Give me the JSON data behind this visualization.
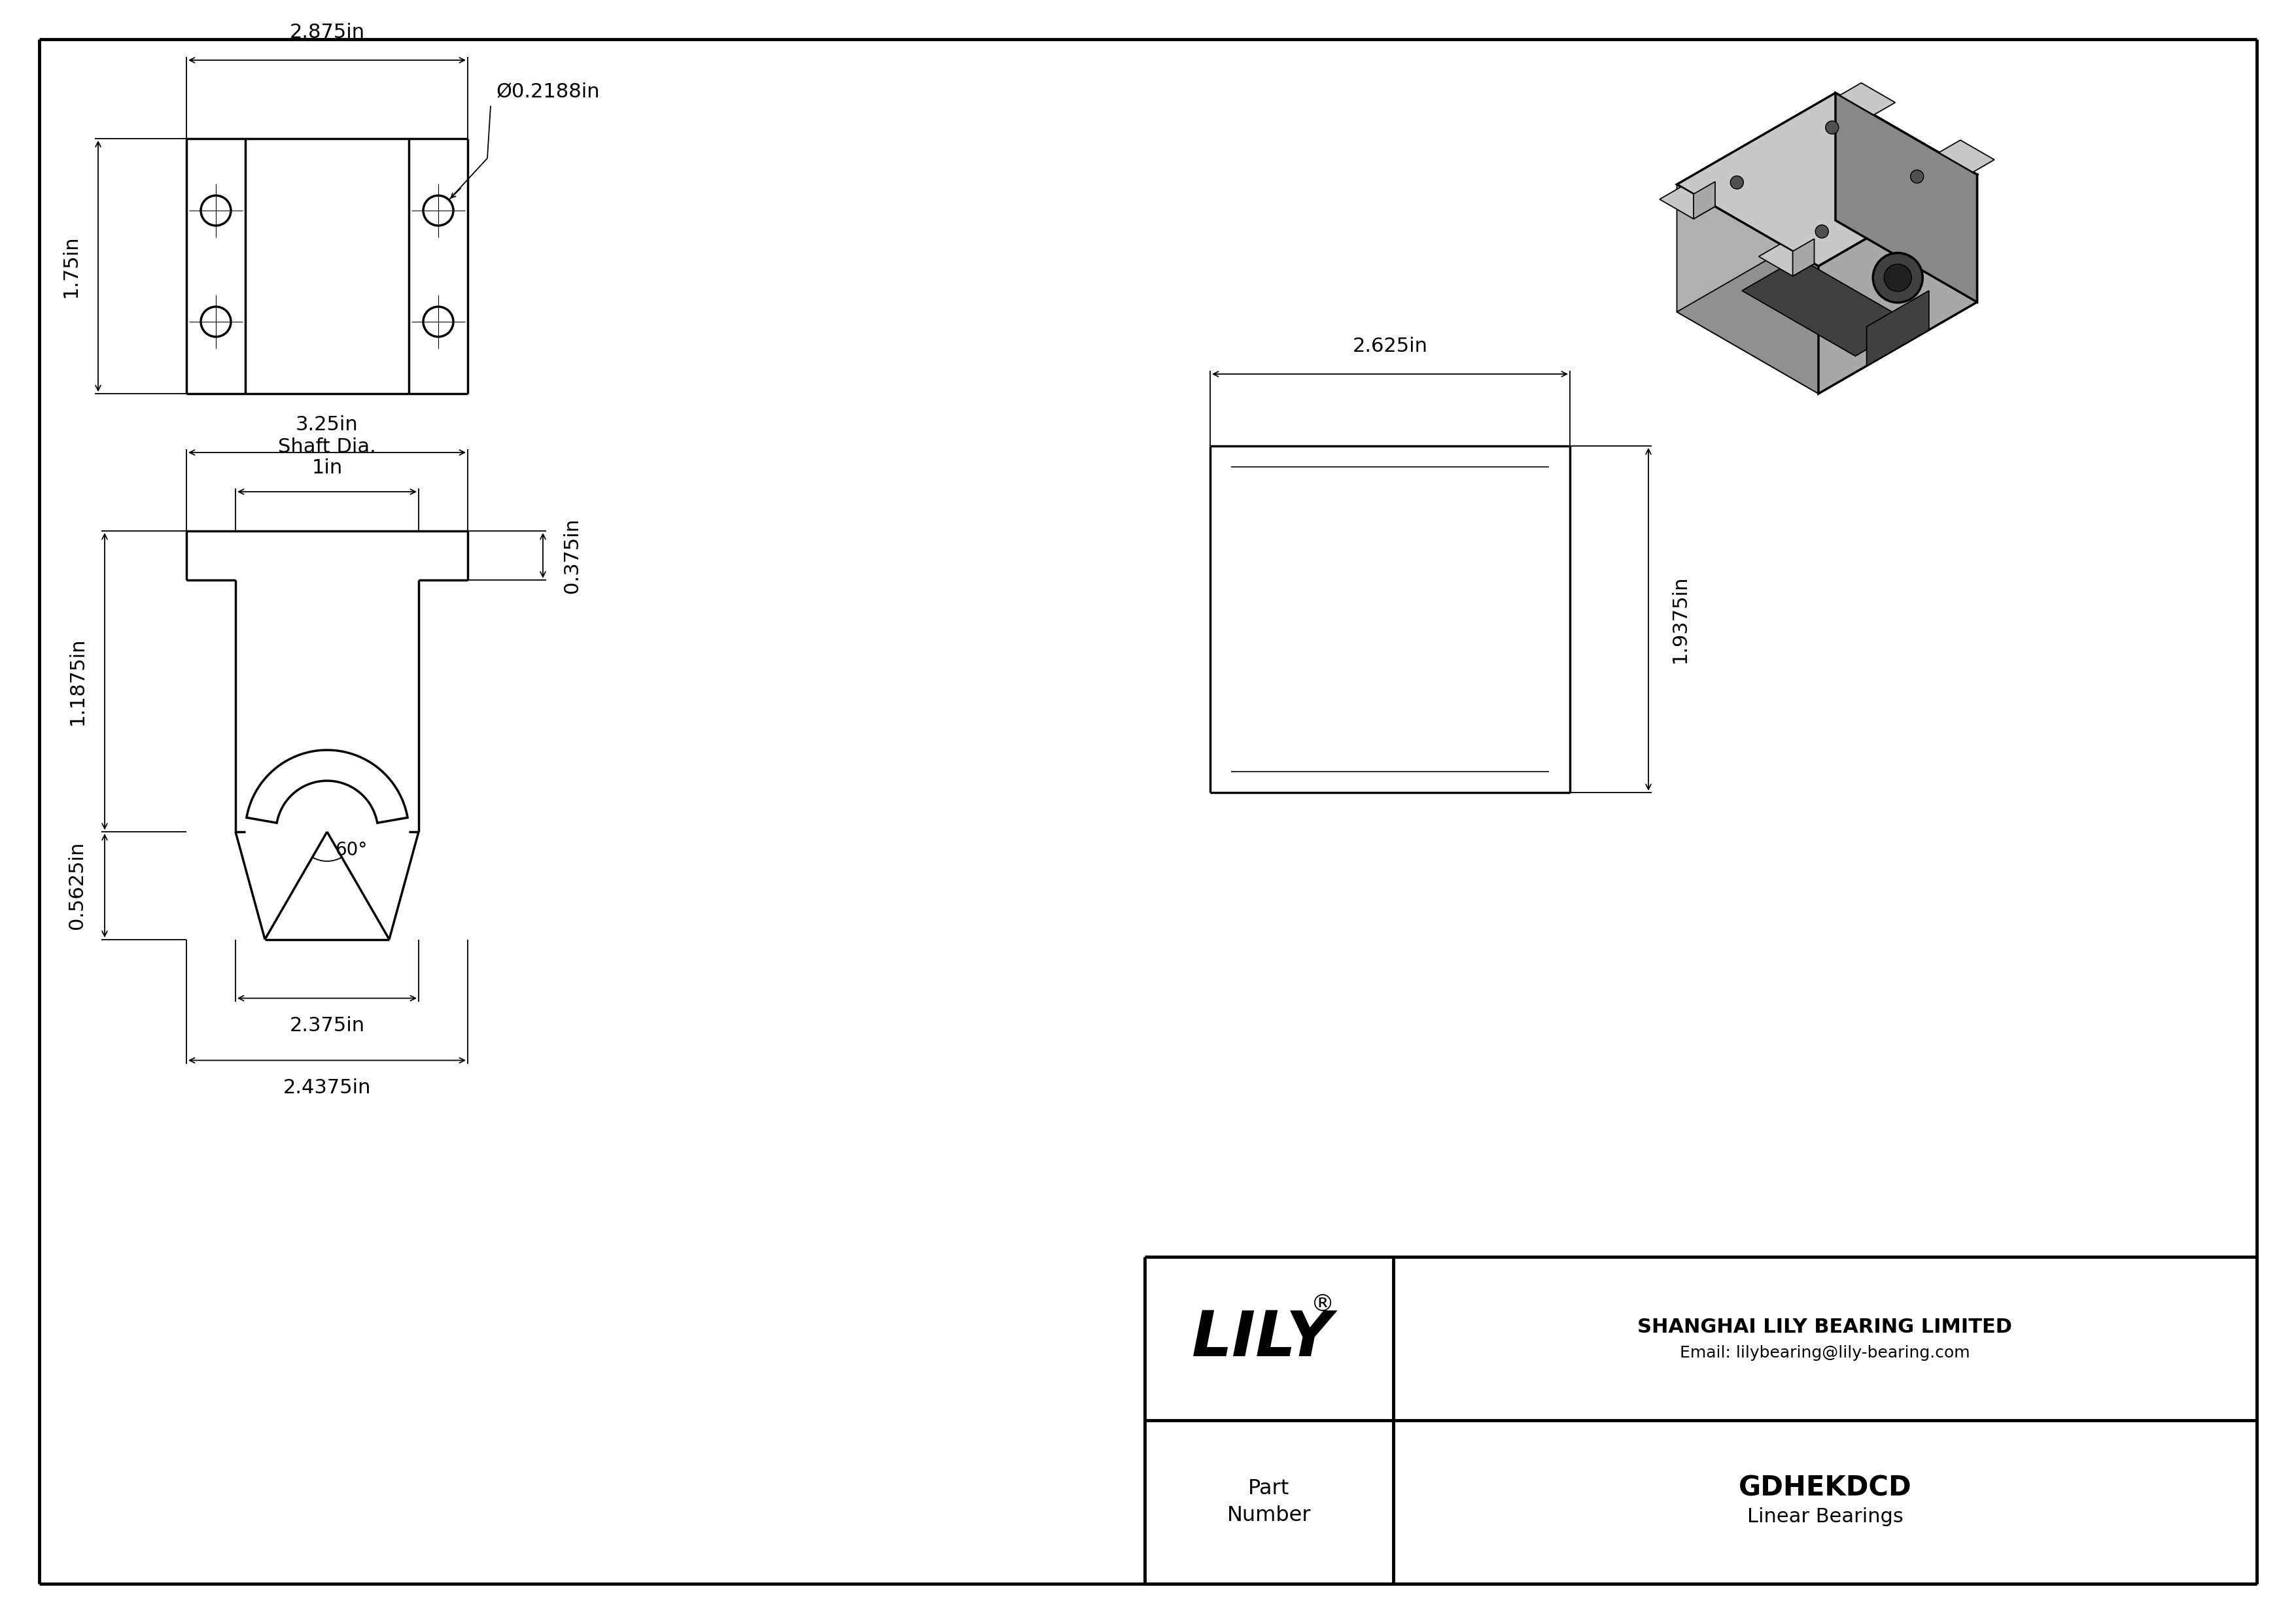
{
  "bg_color": "#ffffff",
  "line_color": "#000000",
  "company": "SHANGHAI LILY BEARING LIMITED",
  "email": "Email: lilybearing@lily-bearing.com",
  "part_name": "GDHEKDCD",
  "part_type": "Linear Bearings",
  "dim_2875": "2.875in",
  "dim_175": "1.75in",
  "dim_02188": "Ø0.2188in",
  "dim_0375": "0.375in",
  "dim_325": "3.25in",
  "dim_1": "1in",
  "shaft_dia": "Shaft Dia.",
  "dim_11875": "1.1875in",
  "dim_05625": "0.5625in",
  "dim_60": "60°",
  "dim_2375": "2.375in",
  "dim_24375": "2.4375in",
  "dim_2625": "2.625in",
  "dim_19375": "1.9375in",
  "lw_main": 2.5,
  "lw_dim": 1.3,
  "lw_border": 3.5,
  "face_top": "#c8c8c8",
  "face_front": "#a8a8a8",
  "face_right": "#888888",
  "face_dark": "#404040",
  "face_slot": "#303030"
}
